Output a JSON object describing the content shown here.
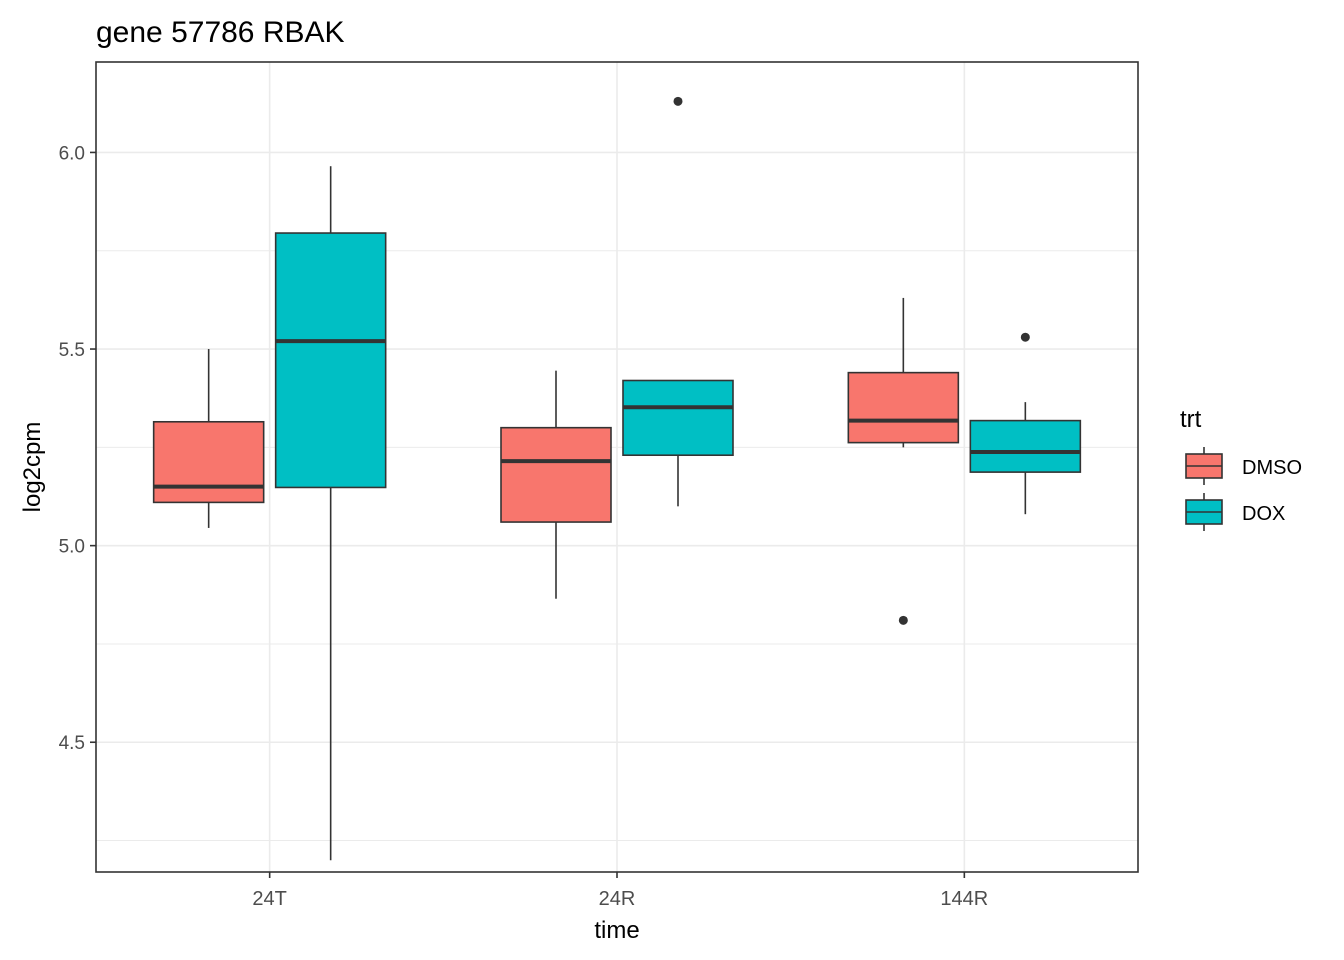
{
  "chart_data": {
    "type": "boxplot",
    "title": "gene 57786 RBAK",
    "xlabel": "time",
    "ylabel": "log2cpm",
    "categories": [
      "24T",
      "24R",
      "144R"
    ],
    "y_ticks": [
      "4.5",
      "5.0",
      "5.5",
      "6.0"
    ],
    "ylim": [
      4.17,
      6.23
    ],
    "grid": true,
    "legend": {
      "title": "trt",
      "position": "right",
      "entries": [
        "DMSO",
        "DOX"
      ]
    },
    "series": [
      {
        "name": "DMSO",
        "color": "#F8766D",
        "boxes": [
          {
            "category": "24T",
            "lower_whisker": 5.045,
            "q1": 5.11,
            "median": 5.15,
            "q3": 5.315,
            "upper_whisker": 5.5,
            "outliers": []
          },
          {
            "category": "24R",
            "lower_whisker": 4.865,
            "q1": 5.06,
            "median": 5.215,
            "q3": 5.3,
            "upper_whisker": 5.445,
            "outliers": []
          },
          {
            "category": "144R",
            "lower_whisker": 5.25,
            "q1": 5.262,
            "median": 5.318,
            "q3": 5.44,
            "upper_whisker": 5.63,
            "outliers": [
              4.81
            ]
          }
        ]
      },
      {
        "name": "DOX",
        "color": "#00BFC4",
        "boxes": [
          {
            "category": "24T",
            "lower_whisker": 4.2,
            "q1": 5.148,
            "median": 5.52,
            "q3": 5.795,
            "upper_whisker": 5.965,
            "outliers": []
          },
          {
            "category": "24R",
            "lower_whisker": 5.1,
            "q1": 5.23,
            "median": 5.352,
            "q3": 5.42,
            "upper_whisker": 5.42,
            "outliers": [
              6.13
            ]
          },
          {
            "category": "144R",
            "lower_whisker": 5.08,
            "q1": 5.187,
            "median": 5.238,
            "q3": 5.318,
            "upper_whisker": 5.365,
            "outliers": [
              5.53
            ]
          }
        ]
      }
    ]
  }
}
